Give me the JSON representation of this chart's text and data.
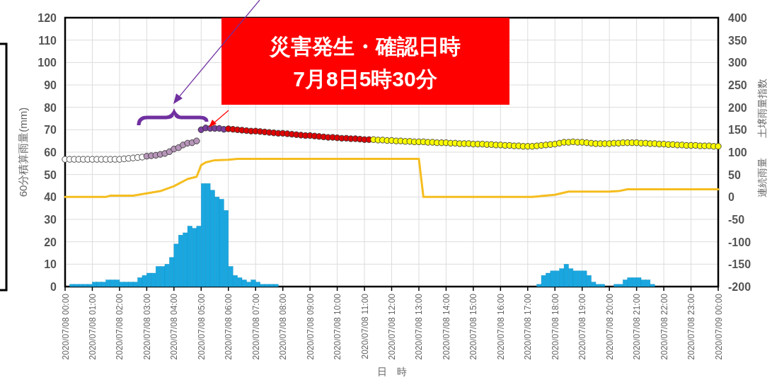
{
  "chart_data": {
    "type": "bar",
    "xlabel": "日　時",
    "ylabel": "60分積算雨量(mm)",
    "y2label": "連続雨量　　土壌雨量指数",
    "grid": true,
    "xlim": [
      "2020-07-08T00:00",
      "2020-07-09T00:00"
    ],
    "xticks": [
      {
        "value": "2020-07-08T00:00",
        "label": "2020/07/08 00:00"
      },
      {
        "value": "2020-07-08T01:00",
        "label": "2020/07/08 01:00"
      },
      {
        "value": "2020-07-08T02:00",
        "label": "2020/07/08 02:00"
      },
      {
        "value": "2020-07-08T03:00",
        "label": "2020/07/08 03:00"
      },
      {
        "value": "2020-07-08T04:00",
        "label": "2020/07/08 04:00"
      },
      {
        "value": "2020-07-08T05:00",
        "label": "2020/07/08 05:00"
      },
      {
        "value": "2020-07-08T06:00",
        "label": "2020/07/08 06:00"
      },
      {
        "value": "2020-07-08T07:00",
        "label": "2020/07/08 07:00"
      },
      {
        "value": "2020-07-08T08:00",
        "label": "2020/07/08 08:00"
      },
      {
        "value": "2020-07-08T09:00",
        "label": "2020/07/08 09:00"
      },
      {
        "value": "2020-07-08T10:00",
        "label": "2020/07/08 10:00"
      },
      {
        "value": "2020-07-08T11:00",
        "label": "2020/07/08 11:00"
      },
      {
        "value": "2020-07-08T12:00",
        "label": "2020/07/08 12:00"
      },
      {
        "value": "2020-07-08T13:00",
        "label": "2020/07/08 13:00"
      },
      {
        "value": "2020-07-08T14:00",
        "label": "2020/07/08 14:00"
      },
      {
        "value": "2020-07-08T15:00",
        "label": "2020/07/08 15:00"
      },
      {
        "value": "2020-07-08T16:00",
        "label": "2020/07/08 16:00"
      },
      {
        "value": "2020-07-08T17:00",
        "label": "2020/07/08 17:00"
      },
      {
        "value": "2020-07-08T18:00",
        "label": "2020/07/08 18:00"
      },
      {
        "value": "2020-07-08T19:00",
        "label": "2020/07/08 19:00"
      },
      {
        "value": "2020-07-08T20:00",
        "label": "2020/07/08 20:00"
      },
      {
        "value": "2020-07-08T21:00",
        "label": "2020/07/08 21:00"
      },
      {
        "value": "2020-07-08T22:00",
        "label": "2020/07/08 22:00"
      },
      {
        "value": "2020-07-08T23:00",
        "label": "2020/07/08 23:00"
      },
      {
        "value": "2020-07-09T00:00",
        "label": "2020/07/09 00:00"
      }
    ],
    "ylim": [
      0,
      120
    ],
    "yticks": [
      0,
      10,
      20,
      30,
      40,
      50,
      60,
      70,
      80,
      90,
      100,
      110,
      120
    ],
    "y2lim": [
      -200,
      400
    ],
    "y2ticks": [
      -200,
      -150,
      -100,
      -50,
      0,
      50,
      100,
      150,
      200,
      250,
      300,
      350,
      400
    ],
    "annotations": [
      "災害発生・確認日時\n7月8日5時30分"
    ],
    "series": [
      {
        "color": "#1aa7e0",
        "x": [
          "2020-07-08T00:00",
          "2020-07-08T00:10",
          "2020-07-08T00:20",
          "2020-07-08T00:30",
          "2020-07-08T00:40",
          "2020-07-08T00:50",
          "2020-07-08T01:00",
          "2020-07-08T01:10",
          "2020-07-08T01:20",
          "2020-07-08T01:30",
          "2020-07-08T01:40",
          "2020-07-08T01:50",
          "2020-07-08T02:00",
          "2020-07-08T02:10",
          "2020-07-08T02:20",
          "2020-07-08T02:30",
          "2020-07-08T02:40",
          "2020-07-08T02:50",
          "2020-07-08T03:00",
          "2020-07-08T03:10",
          "2020-07-08T03:20",
          "2020-07-08T03:30",
          "2020-07-08T03:40",
          "2020-07-08T03:50",
          "2020-07-08T04:00",
          "2020-07-08T04:10",
          "2020-07-08T04:20",
          "2020-07-08T04:30",
          "2020-07-08T04:40",
          "2020-07-08T04:50",
          "2020-07-08T05:00",
          "2020-07-08T05:10",
          "2020-07-08T05:20",
          "2020-07-08T05:30",
          "2020-07-08T05:40",
          "2020-07-08T05:50",
          "2020-07-08T06:00",
          "2020-07-08T06:10",
          "2020-07-08T06:20",
          "2020-07-08T06:30",
          "2020-07-08T06:40",
          "2020-07-08T06:50",
          "2020-07-08T07:00",
          "2020-07-08T07:10",
          "2020-07-08T07:20",
          "2020-07-08T07:30",
          "2020-07-08T07:40",
          "2020-07-08T07:50",
          "2020-07-08T08:00",
          "2020-07-08T08:10",
          "2020-07-08T08:20",
          "2020-07-08T08:30",
          "2020-07-08T08:40",
          "2020-07-08T08:50",
          "2020-07-08T09:00",
          "2020-07-08T09:10",
          "2020-07-08T09:20",
          "2020-07-08T09:30",
          "2020-07-08T09:40",
          "2020-07-08T09:50",
          "2020-07-08T10:00",
          "2020-07-08T10:10",
          "2020-07-08T10:20",
          "2020-07-08T10:30",
          "2020-07-08T10:40",
          "2020-07-08T10:50",
          "2020-07-08T11:00",
          "2020-07-08T11:10",
          "2020-07-08T11:20",
          "2020-07-08T11:30",
          "2020-07-08T11:40",
          "2020-07-08T11:50",
          "2020-07-08T12:00",
          "2020-07-08T12:10",
          "2020-07-08T12:20",
          "2020-07-08T12:30",
          "2020-07-08T12:40",
          "2020-07-08T12:50",
          "2020-07-08T13:00",
          "2020-07-08T13:10",
          "2020-07-08T13:20",
          "2020-07-08T13:30",
          "2020-07-08T13:40",
          "2020-07-08T13:50",
          "2020-07-08T14:00",
          "2020-07-08T14:10",
          "2020-07-08T14:20",
          "2020-07-08T14:30",
          "2020-07-08T14:40",
          "2020-07-08T14:50",
          "2020-07-08T15:00",
          "2020-07-08T15:10",
          "2020-07-08T15:20",
          "2020-07-08T15:30",
          "2020-07-08T15:40",
          "2020-07-08T15:50",
          "2020-07-08T16:00",
          "2020-07-08T16:10",
          "2020-07-08T16:20",
          "2020-07-08T16:30",
          "2020-07-08T16:40",
          "2020-07-08T16:50",
          "2020-07-08T17:00",
          "2020-07-08T17:10",
          "2020-07-08T17:20",
          "2020-07-08T17:30",
          "2020-07-08T17:40",
          "2020-07-08T17:50",
          "2020-07-08T18:00",
          "2020-07-08T18:10",
          "2020-07-08T18:20",
          "2020-07-08T18:30",
          "2020-07-08T18:40",
          "2020-07-08T18:50",
          "2020-07-08T19:00",
          "2020-07-08T19:10",
          "2020-07-08T19:20",
          "2020-07-08T19:30",
          "2020-07-08T19:40",
          "2020-07-08T19:50",
          "2020-07-08T20:00",
          "2020-07-08T20:10",
          "2020-07-08T20:20",
          "2020-07-08T20:30",
          "2020-07-08T20:40",
          "2020-07-08T20:50",
          "2020-07-08T21:00",
          "2020-07-08T21:10",
          "2020-07-08T21:20",
          "2020-07-08T21:30",
          "2020-07-08T21:40",
          "2020-07-08T21:50",
          "2020-07-08T22:00",
          "2020-07-08T22:10",
          "2020-07-08T22:20",
          "2020-07-08T22:30",
          "2020-07-08T22:40",
          "2020-07-08T22:50",
          "2020-07-08T23:00",
          "2020-07-08T23:10",
          "2020-07-08T23:20",
          "2020-07-08T23:30",
          "2020-07-08T23:40",
          "2020-07-08T23:50"
        ],
        "values": [
          0,
          1,
          1,
          1,
          1,
          1,
          2,
          2,
          2,
          3,
          3,
          3,
          2,
          2,
          2,
          2,
          4,
          5,
          6,
          6,
          9,
          9,
          10,
          13,
          19,
          23,
          24,
          27,
          26,
          27,
          46,
          46,
          43,
          40,
          39,
          34,
          9,
          5,
          4,
          3,
          2,
          3,
          2,
          1,
          1,
          1,
          1,
          0,
          0,
          0,
          0,
          0,
          0,
          0,
          0,
          0,
          0,
          0,
          0,
          0,
          0,
          0,
          0,
          0,
          0,
          0,
          0,
          0,
          0,
          0,
          0,
          0,
          0,
          0,
          0,
          0,
          0,
          0,
          0,
          0,
          0,
          0,
          0,
          0,
          0,
          0,
          0,
          0,
          0,
          0,
          0,
          0,
          0,
          0,
          0,
          0,
          0,
          0,
          0,
          0,
          0,
          0,
          0,
          0,
          1,
          5,
          6,
          7,
          7,
          8,
          10,
          8,
          7,
          7,
          7,
          5,
          2,
          1,
          1,
          0,
          0,
          1,
          1,
          3,
          4,
          4,
          4,
          3,
          3,
          1,
          0,
          0,
          0,
          0,
          0,
          0,
          0,
          0,
          0,
          0,
          0,
          0,
          0,
          0
        ]
      },
      {
        "type": "line",
        "axis": "y2",
        "color": "#f5bd1f",
        "x": [
          "2020-07-08T00:00",
          "2020-07-08T01:30",
          "2020-07-08T01:40",
          "2020-07-08T02:30",
          "2020-07-08T03:00",
          "2020-07-08T03:30",
          "2020-07-08T04:00",
          "2020-07-08T04:30",
          "2020-07-08T04:50",
          "2020-07-08T05:00",
          "2020-07-08T05:10",
          "2020-07-08T05:30",
          "2020-07-08T06:00",
          "2020-07-08T06:20",
          "2020-07-08T13:00",
          "2020-07-08T13:10",
          "2020-07-08T17:10",
          "2020-07-08T17:30",
          "2020-07-08T18:00",
          "2020-07-08T18:30",
          "2020-07-08T20:00",
          "2020-07-08T20:20",
          "2020-07-08T20:40",
          "2020-07-09T00:00"
        ],
        "values": [
          0,
          0,
          3,
          3,
          8,
          13,
          24,
          40,
          45,
          71,
          77,
          82,
          83,
          85,
          85,
          0,
          0,
          2,
          5,
          12,
          12,
          13,
          17,
          17
        ]
      },
      {
        "type": "scatter",
        "axis": "y2",
        "marker": "circle",
        "color": "#ffffff",
        "x": [
          "2020-07-08T00:00",
          "2020-07-08T00:10",
          "2020-07-08T00:20",
          "2020-07-08T00:30",
          "2020-07-08T00:40",
          "2020-07-08T00:50",
          "2020-07-08T01:00",
          "2020-07-08T01:10",
          "2020-07-08T01:20",
          "2020-07-08T01:30",
          "2020-07-08T01:40",
          "2020-07-08T01:50",
          "2020-07-08T02:00",
          "2020-07-08T02:10",
          "2020-07-08T02:20",
          "2020-07-08T02:30",
          "2020-07-08T02:40",
          "2020-07-08T02:50"
        ],
        "values": [
          84,
          84,
          84,
          84,
          84,
          84,
          84,
          84,
          84,
          84,
          84,
          84,
          84,
          85,
          86,
          87,
          88,
          89
        ]
      },
      {
        "type": "scatter",
        "axis": "y2",
        "marker": "circle",
        "color": "#b795b9",
        "x": [
          "2020-07-08T03:00",
          "2020-07-08T03:10",
          "2020-07-08T03:20",
          "2020-07-08T03:30",
          "2020-07-08T03:40",
          "2020-07-08T03:50",
          "2020-07-08T04:00",
          "2020-07-08T04:10",
          "2020-07-08T04:20",
          "2020-07-08T04:30",
          "2020-07-08T04:40",
          "2020-07-08T04:50"
        ],
        "values": [
          91,
          92,
          93,
          95,
          97,
          101,
          107,
          110,
          116,
          120,
          121,
          125
        ]
      },
      {
        "type": "scatter",
        "axis": "y2",
        "marker": "circle",
        "color": "#7a3f9d",
        "x": [
          "2020-07-08T05:00",
          "2020-07-08T05:10",
          "2020-07-08T05:20",
          "2020-07-08T05:30",
          "2020-07-08T05:40",
          "2020-07-08T05:50"
        ],
        "values": [
          150,
          154,
          153,
          153,
          153,
          151
        ]
      },
      {
        "type": "scatter",
        "axis": "y2",
        "marker": "circle",
        "color": "#e00000",
        "x": [
          "2020-07-08T06:00",
          "2020-07-08T06:10",
          "2020-07-08T06:20",
          "2020-07-08T06:30",
          "2020-07-08T06:40",
          "2020-07-08T06:50",
          "2020-07-08T07:00",
          "2020-07-08T07:10",
          "2020-07-08T07:20",
          "2020-07-08T07:30",
          "2020-07-08T07:40",
          "2020-07-08T07:50",
          "2020-07-08T08:00",
          "2020-07-08T08:10",
          "2020-07-08T08:20",
          "2020-07-08T08:30",
          "2020-07-08T08:40",
          "2020-07-08T08:50",
          "2020-07-08T09:00",
          "2020-07-08T09:10",
          "2020-07-08T09:20",
          "2020-07-08T09:30",
          "2020-07-08T09:40",
          "2020-07-08T09:50",
          "2020-07-08T10:00",
          "2020-07-08T10:10",
          "2020-07-08T10:20",
          "2020-07-08T10:30",
          "2020-07-08T10:40",
          "2020-07-08T10:50",
          "2020-07-08T11:00",
          "2020-07-08T11:10"
        ],
        "values": [
          152,
          151,
          150,
          149,
          148,
          147,
          147,
          146,
          145,
          144,
          143,
          142,
          142,
          141,
          140,
          139,
          138,
          137,
          137,
          136,
          135,
          134,
          133,
          133,
          132,
          131,
          131,
          130,
          130,
          129,
          128,
          128
        ]
      },
      {
        "type": "scatter",
        "axis": "y2",
        "marker": "circle",
        "color": "#ffff00",
        "x": [
          "2020-07-08T11:20",
          "2020-07-08T11:30",
          "2020-07-08T11:40",
          "2020-07-08T11:50",
          "2020-07-08T12:00",
          "2020-07-08T12:10",
          "2020-07-08T12:20",
          "2020-07-08T12:30",
          "2020-07-08T12:40",
          "2020-07-08T12:50",
          "2020-07-08T13:00",
          "2020-07-08T13:10",
          "2020-07-08T13:20",
          "2020-07-08T13:30",
          "2020-07-08T13:40",
          "2020-07-08T13:50",
          "2020-07-08T14:00",
          "2020-07-08T14:10",
          "2020-07-08T14:20",
          "2020-07-08T14:30",
          "2020-07-08T14:40",
          "2020-07-08T14:50",
          "2020-07-08T15:00",
          "2020-07-08T15:10",
          "2020-07-08T15:20",
          "2020-07-08T15:30",
          "2020-07-08T15:40",
          "2020-07-08T15:50",
          "2020-07-08T16:00",
          "2020-07-08T16:10",
          "2020-07-08T16:20",
          "2020-07-08T16:30",
          "2020-07-08T16:40",
          "2020-07-08T16:50",
          "2020-07-08T17:00",
          "2020-07-08T17:10",
          "2020-07-08T17:20",
          "2020-07-08T17:30",
          "2020-07-08T17:40",
          "2020-07-08T17:50",
          "2020-07-08T18:00",
          "2020-07-08T18:10",
          "2020-07-08T18:20",
          "2020-07-08T18:30",
          "2020-07-08T18:40",
          "2020-07-08T18:50",
          "2020-07-08T19:00",
          "2020-07-08T19:10",
          "2020-07-08T19:20",
          "2020-07-08T19:30",
          "2020-07-08T19:40",
          "2020-07-08T19:50",
          "2020-07-08T20:00",
          "2020-07-08T20:10",
          "2020-07-08T20:20",
          "2020-07-08T20:30",
          "2020-07-08T20:40",
          "2020-07-08T20:50",
          "2020-07-08T21:00",
          "2020-07-08T21:10",
          "2020-07-08T21:20",
          "2020-07-08T21:30",
          "2020-07-08T21:40",
          "2020-07-08T21:50",
          "2020-07-08T22:00",
          "2020-07-08T22:10",
          "2020-07-08T22:20",
          "2020-07-08T22:30",
          "2020-07-08T22:40",
          "2020-07-08T22:50",
          "2020-07-08T23:00",
          "2020-07-08T23:10",
          "2020-07-08T23:20",
          "2020-07-08T23:30",
          "2020-07-08T23:40",
          "2020-07-08T23:50",
          "2020-07-09T00:00"
        ],
        "values": [
          128,
          127,
          127,
          126,
          126,
          125,
          125,
          124,
          124,
          123,
          123,
          123,
          122,
          122,
          121,
          121,
          121,
          120,
          120,
          119,
          119,
          119,
          118,
          118,
          118,
          117,
          117,
          116,
          116,
          115,
          115,
          114,
          114,
          113,
          113,
          113,
          114,
          115,
          116,
          117,
          118,
          120,
          122,
          122,
          123,
          122,
          122,
          121,
          120,
          119,
          119,
          119,
          119,
          120,
          120,
          121,
          121,
          121,
          121,
          120,
          120,
          119,
          119,
          118,
          118,
          117,
          117,
          116,
          116,
          115,
          115,
          115,
          114,
          114,
          114,
          113,
          113
        ]
      }
    ]
  }
}
